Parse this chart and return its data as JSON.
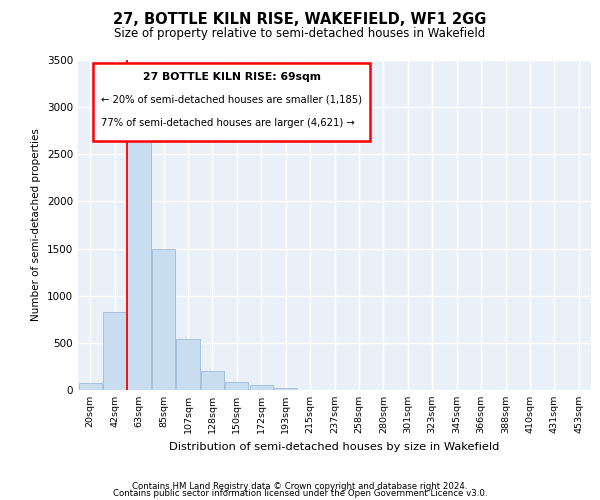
{
  "title1": "27, BOTTLE KILN RISE, WAKEFIELD, WF1 2GG",
  "title2": "Size of property relative to semi-detached houses in Wakefield",
  "xlabel": "Distribution of semi-detached houses by size in Wakefield",
  "ylabel": "Number of semi-detached properties",
  "categories": [
    "20sqm",
    "42sqm",
    "63sqm",
    "85sqm",
    "107sqm",
    "128sqm",
    "150sqm",
    "172sqm",
    "193sqm",
    "215sqm",
    "237sqm",
    "258sqm",
    "280sqm",
    "301sqm",
    "323sqm",
    "345sqm",
    "366sqm",
    "388sqm",
    "410sqm",
    "431sqm",
    "453sqm"
  ],
  "values": [
    75,
    830,
    2800,
    1500,
    540,
    200,
    90,
    50,
    25,
    0,
    0,
    0,
    0,
    0,
    0,
    0,
    0,
    0,
    0,
    0,
    0
  ],
  "bar_color": "#c9ddf0",
  "bar_edge_color": "#a0bcd8",
  "ylim": [
    0,
    3500
  ],
  "yticks": [
    0,
    500,
    1000,
    1500,
    2000,
    2500,
    3000,
    3500
  ],
  "property_label": "27 BOTTLE KILN RISE: 69sqm",
  "pct_smaller": "20% of semi-detached houses are smaller (1,185)",
  "pct_larger": "77% of semi-detached houses are larger (4,621)",
  "red_line_x": 1.5,
  "background_color": "#eaf0f8",
  "grid_color": "#ffffff",
  "footer1": "Contains HM Land Registry data © Crown copyright and database right 2024.",
  "footer2": "Contains public sector information licensed under the Open Government Licence v3.0."
}
